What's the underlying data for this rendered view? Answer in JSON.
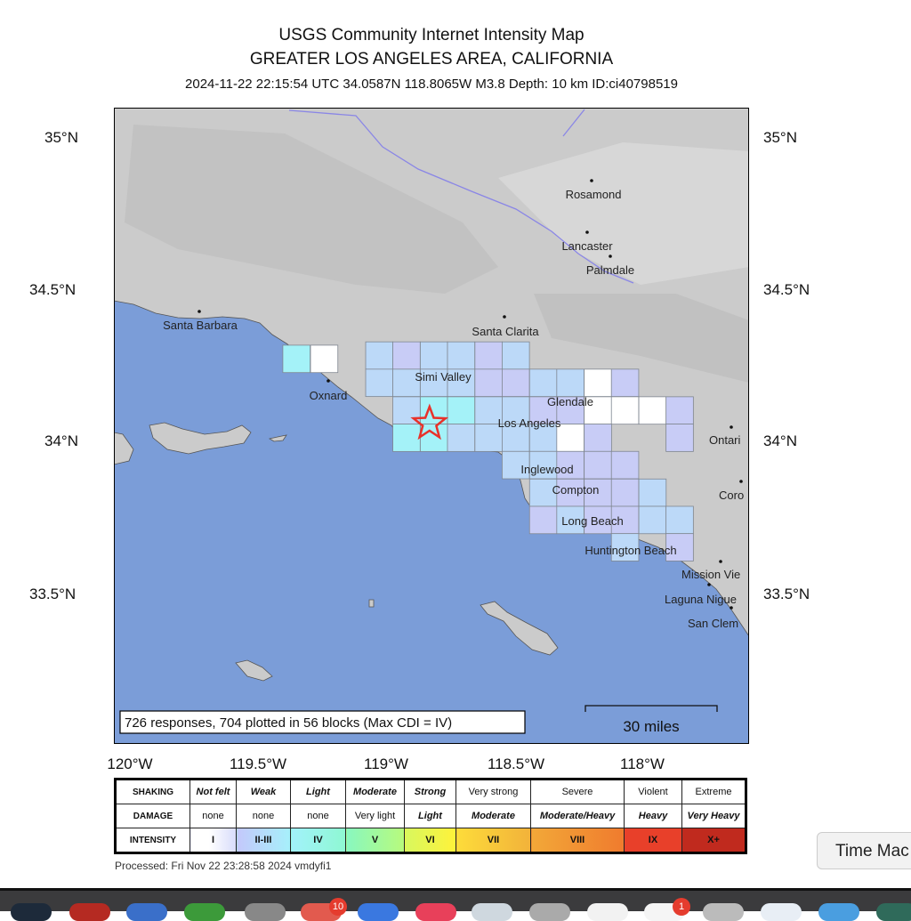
{
  "header": {
    "title": "USGS Community Internet Intensity Map",
    "region": "GREATER LOS ANGELES AREA, CALIFORNIA",
    "event_line": "2024-11-22 22:15:54 UTC 34.0587N 118.8065W M3.8 Depth: 10 km ID:ci40798519"
  },
  "map": {
    "lat_labels": [
      "35°N",
      "34.5°N",
      "34°N",
      "33.5°N"
    ],
    "lon_labels": [
      "120°W",
      "119.5°W",
      "119°W",
      "118.5°W",
      "118°W"
    ],
    "epicenter": {
      "lat": 34.0587,
      "lon": -118.8065,
      "color": "#e8322a"
    },
    "colors": {
      "water": "#7b9dd8",
      "land": "#cbcbcb",
      "aqueduct": "#8a86e6"
    },
    "cities": [
      "Rosamond",
      "Lancaster",
      "Palmdale",
      "Santa Clarita",
      "Santa Barbara",
      "Oxnard",
      "Simi Valley",
      "Glendale",
      "Los Angeles",
      "Inglewood",
      "Compton",
      "Long Beach",
      "Huntington Beach",
      "Ontari",
      "Coro",
      "Mission Vie",
      "Laguna Nigue",
      "San Clem"
    ],
    "cdi_colors": {
      "I": "#ffffff",
      "II": "#c8ccf6",
      "III": "#bcd9f8",
      "IV": "#a4f2f8"
    },
    "blocks": [
      {
        "lon": -119.389,
        "lat": 34.317,
        "cdi": "IV"
      },
      {
        "lon": -119.279,
        "lat": 34.317,
        "cdi": "I"
      },
      {
        "lon": -119.06,
        "lat": 34.328,
        "cdi": "III"
      },
      {
        "lon": -118.952,
        "lat": 34.328,
        "cdi": "II"
      },
      {
        "lon": -118.843,
        "lat": 34.328,
        "cdi": "III"
      },
      {
        "lon": -118.735,
        "lat": 34.328,
        "cdi": "III"
      },
      {
        "lon": -118.626,
        "lat": 34.328,
        "cdi": "II"
      },
      {
        "lon": -118.518,
        "lat": 34.328,
        "cdi": "III"
      },
      {
        "lon": -119.06,
        "lat": 34.238,
        "cdi": "III"
      },
      {
        "lon": -118.952,
        "lat": 34.238,
        "cdi": "III"
      },
      {
        "lon": -118.843,
        "lat": 34.238,
        "cdi": "III"
      },
      {
        "lon": -118.735,
        "lat": 34.238,
        "cdi": "III"
      },
      {
        "lon": -118.626,
        "lat": 34.238,
        "cdi": "II"
      },
      {
        "lon": -118.518,
        "lat": 34.238,
        "cdi": "II"
      },
      {
        "lon": -118.409,
        "lat": 34.238,
        "cdi": "III"
      },
      {
        "lon": -118.301,
        "lat": 34.238,
        "cdi": "III"
      },
      {
        "lon": -118.192,
        "lat": 34.238,
        "cdi": "I"
      },
      {
        "lon": -118.084,
        "lat": 34.238,
        "cdi": "II"
      },
      {
        "lon": -118.952,
        "lat": 34.147,
        "cdi": "III"
      },
      {
        "lon": -118.843,
        "lat": 34.147,
        "cdi": "IV"
      },
      {
        "lon": -118.735,
        "lat": 34.147,
        "cdi": "IV"
      },
      {
        "lon": -118.626,
        "lat": 34.147,
        "cdi": "III"
      },
      {
        "lon": -118.518,
        "lat": 34.147,
        "cdi": "III"
      },
      {
        "lon": -118.409,
        "lat": 34.147,
        "cdi": "II"
      },
      {
        "lon": -118.301,
        "lat": 34.147,
        "cdi": "II"
      },
      {
        "lon": -118.192,
        "lat": 34.147,
        "cdi": "I"
      },
      {
        "lon": -118.084,
        "lat": 34.147,
        "cdi": "I"
      },
      {
        "lon": -117.975,
        "lat": 34.147,
        "cdi": "I"
      },
      {
        "lon": -117.867,
        "lat": 34.147,
        "cdi": "II"
      },
      {
        "lon": -118.952,
        "lat": 34.057,
        "cdi": "IV"
      },
      {
        "lon": -118.843,
        "lat": 34.057,
        "cdi": "IV"
      },
      {
        "lon": -118.735,
        "lat": 34.057,
        "cdi": "III"
      },
      {
        "lon": -118.626,
        "lat": 34.057,
        "cdi": "III"
      },
      {
        "lon": -118.518,
        "lat": 34.057,
        "cdi": "III"
      },
      {
        "lon": -118.409,
        "lat": 34.057,
        "cdi": "III"
      },
      {
        "lon": -118.301,
        "lat": 34.057,
        "cdi": "I"
      },
      {
        "lon": -118.192,
        "lat": 34.057,
        "cdi": "II"
      },
      {
        "lon": -117.867,
        "lat": 34.057,
        "cdi": "II"
      },
      {
        "lon": -118.518,
        "lat": 33.967,
        "cdi": "III"
      },
      {
        "lon": -118.409,
        "lat": 33.967,
        "cdi": "III"
      },
      {
        "lon": -118.301,
        "lat": 33.967,
        "cdi": "II"
      },
      {
        "lon": -118.192,
        "lat": 33.967,
        "cdi": "II"
      },
      {
        "lon": -118.084,
        "lat": 33.967,
        "cdi": "II"
      },
      {
        "lon": -118.409,
        "lat": 33.876,
        "cdi": "III"
      },
      {
        "lon": -118.301,
        "lat": 33.876,
        "cdi": "II"
      },
      {
        "lon": -118.192,
        "lat": 33.876,
        "cdi": "II"
      },
      {
        "lon": -118.084,
        "lat": 33.876,
        "cdi": "II"
      },
      {
        "lon": -117.975,
        "lat": 33.876,
        "cdi": "III"
      },
      {
        "lon": -118.409,
        "lat": 33.786,
        "cdi": "II"
      },
      {
        "lon": -118.301,
        "lat": 33.786,
        "cdi": "III"
      },
      {
        "lon": -118.192,
        "lat": 33.786,
        "cdi": "II"
      },
      {
        "lon": -118.084,
        "lat": 33.786,
        "cdi": "II"
      },
      {
        "lon": -117.975,
        "lat": 33.786,
        "cdi": "III"
      },
      {
        "lon": -117.867,
        "lat": 33.786,
        "cdi": "III"
      },
      {
        "lon": -118.084,
        "lat": 33.696,
        "cdi": "III"
      },
      {
        "lon": -117.867,
        "lat": 33.696,
        "cdi": "II"
      }
    ],
    "summary": "726 responses, 704 plotted in 56 blocks (Max CDI = IV)",
    "scale_label": "30 miles"
  },
  "legend": {
    "row_labels": [
      "SHAKING",
      "DAMAGE",
      "INTENSITY"
    ],
    "shaking": [
      "Not felt",
      "Weak",
      "Light",
      "Moderate",
      "Strong",
      "Very strong",
      "Severe",
      "Violent",
      "Extreme"
    ],
    "damage": [
      "none",
      "none",
      "none",
      "Very light",
      "Light",
      "Moderate",
      "Moderate/Heavy",
      "Heavy",
      "Very Heavy"
    ],
    "intensity": [
      "I",
      "II-III",
      "IV",
      "V",
      "VI",
      "VII",
      "VIII",
      "IX",
      "X+"
    ]
  },
  "footer": {
    "processed": "Processed: Fri Nov 22 23:28:58 2024 vmdyfi1"
  },
  "tooltip": {
    "text": "Time Mac"
  },
  "dock": {
    "badges": [
      "10",
      "1"
    ]
  }
}
